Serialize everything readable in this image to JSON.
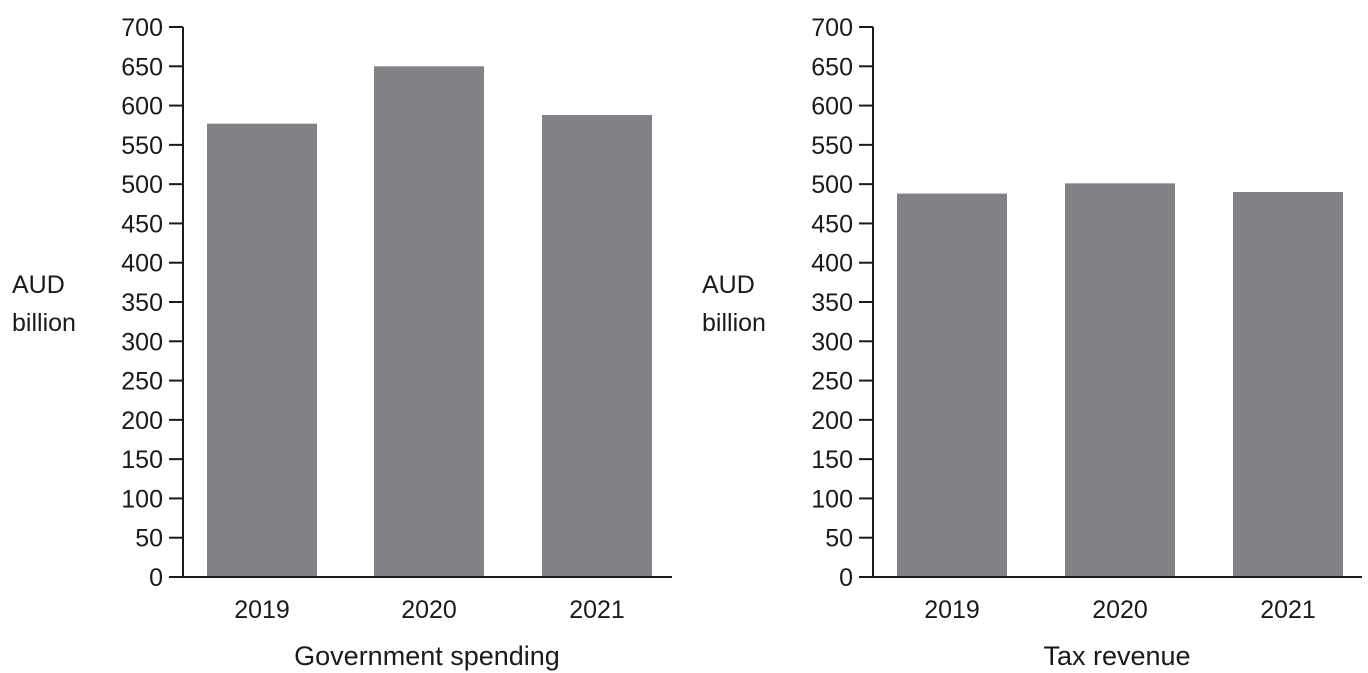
{
  "chart_data": [
    {
      "type": "bar",
      "categories": [
        "2019",
        "2020",
        "2021"
      ],
      "values": [
        577,
        650,
        588
      ],
      "title": "",
      "xlabel": "Government spending",
      "ylabel": [
        "AUD",
        "billion"
      ],
      "ylim": [
        0,
        700
      ],
      "yticks": [
        "0",
        "50",
        "100",
        "150",
        "200",
        "250",
        "300",
        "350",
        "400",
        "450",
        "500",
        "550",
        "600",
        "650",
        "700"
      ],
      "grid": false,
      "bar_color": "#818285"
    },
    {
      "type": "bar",
      "categories": [
        "2019",
        "2020",
        "2021"
      ],
      "values": [
        488,
        501,
        490
      ],
      "title": "",
      "xlabel": "Tax revenue",
      "ylabel": [
        "AUD",
        "billion"
      ],
      "ylim": [
        0,
        700
      ],
      "yticks": [
        "0",
        "50",
        "100",
        "150",
        "200",
        "250",
        "300",
        "350",
        "400",
        "450",
        "500",
        "550",
        "600",
        "650",
        "700"
      ],
      "grid": false,
      "bar_color": "#818285"
    }
  ]
}
